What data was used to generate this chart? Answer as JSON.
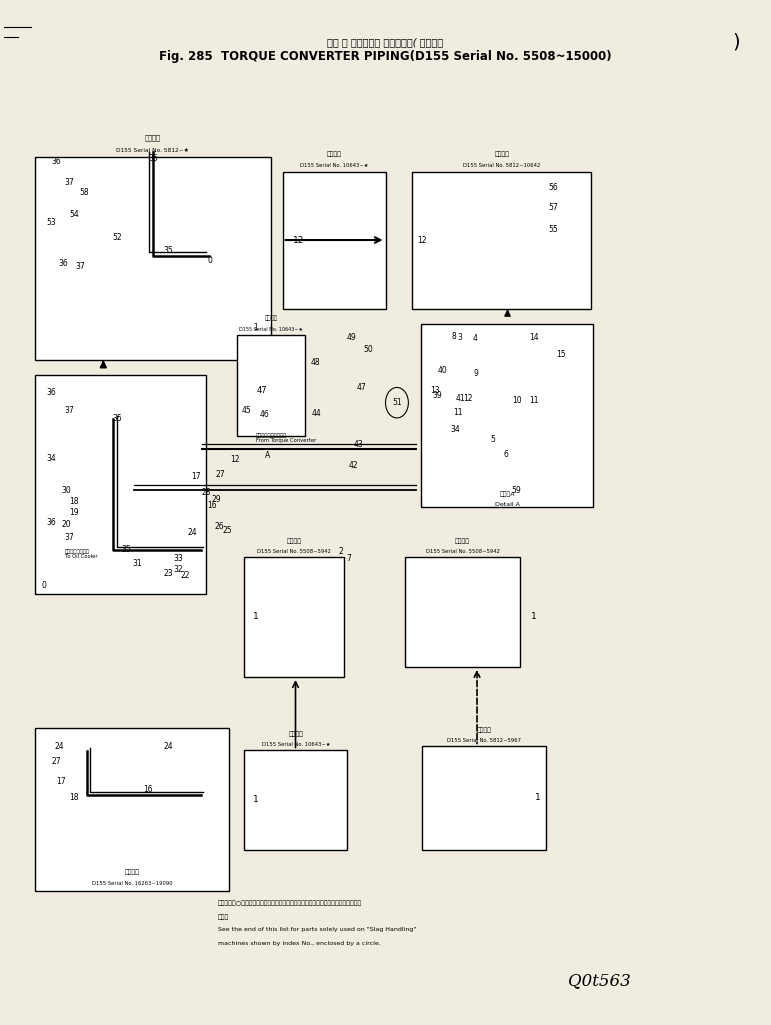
{
  "title_jp": "トル ク コンバータ パイピング( 適用号機",
  "title_en": "Fig. 285  TORQUE CONVERTER PIPING(D155 Serial No. 5508~15000)",
  "background_color": "#f0ede0",
  "page_note_en": "See the end of this list for parts solely used on \"Slag Handling\"",
  "page_note_en2": "machines shown by index No., enclosed by a circle.",
  "page_id": "Q0t563",
  "box_topleft_serial": "D155 Serial No. 5812~★",
  "box_topleft_label": "適用号機",
  "box_topcenter_serial": "D155 Serial No. 10643~★",
  "box_topcenter_label": "適用号機",
  "box_topright_serial": "D155 Serial No. 5812~10642",
  "box_topright_label": "適用号機",
  "box_midcenter_serial": "D155 Serial No. 10643~★",
  "box_midcenter_label": "適用号機",
  "detail_a_label": "詳細図A",
  "detail_a_label2": "Detail A",
  "box_bottomleft_serial": "D155 Serial No. 16263~19090",
  "box_bottomleft_label": "適用号機",
  "box_bottomcenter1_serial": "D155 Serial No. 5508~\n5942",
  "box_bottomcenter1_label": "適用号機",
  "box_bottomcenter2_serial": "D155 Serial No. 10643~★",
  "box_bottomcenter2_label": "適用号機",
  "box_bottomright1_serial": "D155 Serial No. 5508~5942",
  "box_bottomright1_label": "適用号機",
  "box_bottomright2_serial": "D155 Serial No. 5812~5967",
  "box_bottomright2_label": "適用号機",
  "label_torque": "トルクコンバータから",
  "label_torque2": "From Torque Converter",
  "label_oil": "オイルクーラーへ",
  "label_oil2": "To Oil Cooler",
  "page_note_jp": "適用号機の○印ノ部品は適用号機として、修理部品に代わる部品番号をリスト末尾に",
  "page_note_jp2": "記す。"
}
